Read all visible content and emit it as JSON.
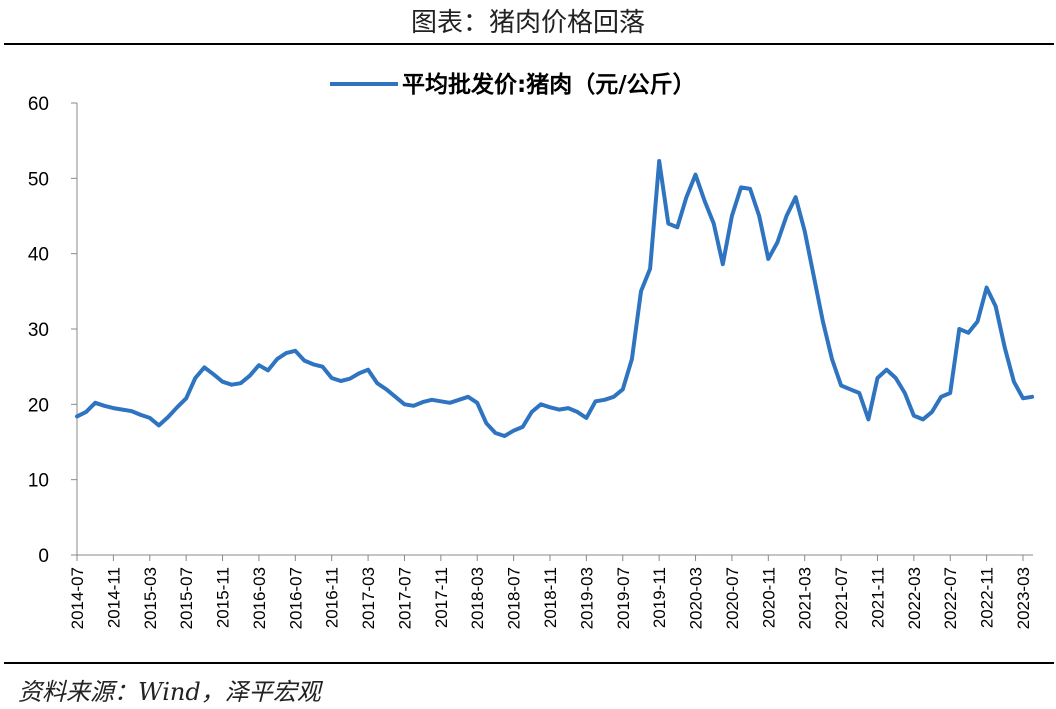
{
  "figure": {
    "title": "图表：猪肉价格回落",
    "source": "资料来源：Wind，泽平宏观"
  },
  "chart_data": {
    "type": "line",
    "ylim": [
      0,
      60
    ],
    "yticks": [
      0,
      10,
      20,
      30,
      40,
      50,
      60
    ],
    "x_tick_labels": [
      "2014-07",
      "2014-11",
      "2015-03",
      "2015-07",
      "2015-11",
      "2016-03",
      "2016-07",
      "2016-11",
      "2017-03",
      "2017-07",
      "2017-11",
      "2018-03",
      "2018-07",
      "2018-11",
      "2019-03",
      "2019-07",
      "2019-11",
      "2020-03",
      "2020-07",
      "2020-11",
      "2021-03",
      "2021-07",
      "2021-11",
      "2022-03",
      "2022-07",
      "2022-11",
      "2023-03"
    ],
    "legend_position": "top-center",
    "grid": false,
    "series": [
      {
        "name": "平均批发价:猪肉（元/公斤）",
        "color": "#2E74C0",
        "data": [
          [
            "2014-07-01",
            18.4
          ],
          [
            "2014-08-01",
            19.0
          ],
          [
            "2014-09-01",
            20.2
          ],
          [
            "2014-10-01",
            19.8
          ],
          [
            "2014-11-01",
            19.5
          ],
          [
            "2014-12-01",
            19.3
          ],
          [
            "2015-01-01",
            19.1
          ],
          [
            "2015-02-01",
            18.6
          ],
          [
            "2015-03-01",
            18.2
          ],
          [
            "2015-04-01",
            17.2
          ],
          [
            "2015-05-01",
            18.3
          ],
          [
            "2015-06-01",
            19.6
          ],
          [
            "2015-07-01",
            20.8
          ],
          [
            "2015-08-01",
            23.5
          ],
          [
            "2015-09-01",
            24.9
          ],
          [
            "2015-10-01",
            24.0
          ],
          [
            "2015-11-01",
            23.0
          ],
          [
            "2015-12-01",
            22.6
          ],
          [
            "2016-01-01",
            22.8
          ],
          [
            "2016-02-01",
            23.8
          ],
          [
            "2016-03-01",
            25.2
          ],
          [
            "2016-04-01",
            24.5
          ],
          [
            "2016-05-01",
            26.0
          ],
          [
            "2016-06-01",
            26.8
          ],
          [
            "2016-07-01",
            27.1
          ],
          [
            "2016-08-01",
            25.8
          ],
          [
            "2016-09-01",
            25.3
          ],
          [
            "2016-10-01",
            25.0
          ],
          [
            "2016-11-01",
            23.5
          ],
          [
            "2016-12-01",
            23.1
          ],
          [
            "2017-01-01",
            23.4
          ],
          [
            "2017-02-01",
            24.1
          ],
          [
            "2017-03-01",
            24.6
          ],
          [
            "2017-04-01",
            22.8
          ],
          [
            "2017-05-01",
            22.0
          ],
          [
            "2017-06-01",
            21.0
          ],
          [
            "2017-07-01",
            20.0
          ],
          [
            "2017-08-01",
            19.8
          ],
          [
            "2017-09-01",
            20.3
          ],
          [
            "2017-10-01",
            20.6
          ],
          [
            "2017-11-01",
            20.4
          ],
          [
            "2017-12-01",
            20.2
          ],
          [
            "2018-01-01",
            20.6
          ],
          [
            "2018-02-01",
            21.0
          ],
          [
            "2018-03-01",
            20.2
          ],
          [
            "2018-04-01",
            17.5
          ],
          [
            "2018-05-01",
            16.2
          ],
          [
            "2018-06-01",
            15.8
          ],
          [
            "2018-07-01",
            16.5
          ],
          [
            "2018-08-01",
            17.0
          ],
          [
            "2018-09-01",
            19.0
          ],
          [
            "2018-10-01",
            20.0
          ],
          [
            "2018-11-01",
            19.6
          ],
          [
            "2018-12-01",
            19.3
          ],
          [
            "2019-01-01",
            19.5
          ],
          [
            "2019-02-01",
            19.0
          ],
          [
            "2019-03-01",
            18.2
          ],
          [
            "2019-04-01",
            20.4
          ],
          [
            "2019-05-01",
            20.6
          ],
          [
            "2019-06-01",
            21.0
          ],
          [
            "2019-07-01",
            22.0
          ],
          [
            "2019-08-01",
            26.0
          ],
          [
            "2019-09-01",
            35.0
          ],
          [
            "2019-10-01",
            38.0
          ],
          [
            "2019-11-01",
            52.3
          ],
          [
            "2019-12-01",
            44.0
          ],
          [
            "2020-01-01",
            43.5
          ],
          [
            "2020-02-01",
            47.5
          ],
          [
            "2020-03-01",
            50.5
          ],
          [
            "2020-04-01",
            47.0
          ],
          [
            "2020-05-01",
            44.0
          ],
          [
            "2020-06-01",
            38.6
          ],
          [
            "2020-07-01",
            45.0
          ],
          [
            "2020-08-01",
            48.8
          ],
          [
            "2020-09-01",
            48.6
          ],
          [
            "2020-10-01",
            45.0
          ],
          [
            "2020-11-01",
            39.3
          ],
          [
            "2020-12-01",
            41.5
          ],
          [
            "2021-01-01",
            45.0
          ],
          [
            "2021-02-01",
            47.5
          ],
          [
            "2021-03-01",
            43.0
          ],
          [
            "2021-04-01",
            37.0
          ],
          [
            "2021-05-01",
            31.0
          ],
          [
            "2021-06-01",
            26.0
          ],
          [
            "2021-07-01",
            22.5
          ],
          [
            "2021-08-01",
            22.0
          ],
          [
            "2021-09-01",
            21.5
          ],
          [
            "2021-10-01",
            18.0
          ],
          [
            "2021-11-01",
            23.5
          ],
          [
            "2021-12-01",
            24.6
          ],
          [
            "2022-01-01",
            23.5
          ],
          [
            "2022-02-01",
            21.5
          ],
          [
            "2022-03-01",
            18.5
          ],
          [
            "2022-04-01",
            18.0
          ],
          [
            "2022-05-01",
            19.0
          ],
          [
            "2022-06-01",
            21.0
          ],
          [
            "2022-07-01",
            21.5
          ],
          [
            "2022-08-01",
            30.0
          ],
          [
            "2022-09-01",
            29.5
          ],
          [
            "2022-10-01",
            31.0
          ],
          [
            "2022-11-01",
            35.5
          ],
          [
            "2022-12-01",
            33.0
          ],
          [
            "2023-01-01",
            27.5
          ],
          [
            "2023-02-01",
            23.0
          ],
          [
            "2023-03-01",
            20.8
          ],
          [
            "2023-04-01",
            21.0
          ]
        ]
      }
    ]
  }
}
